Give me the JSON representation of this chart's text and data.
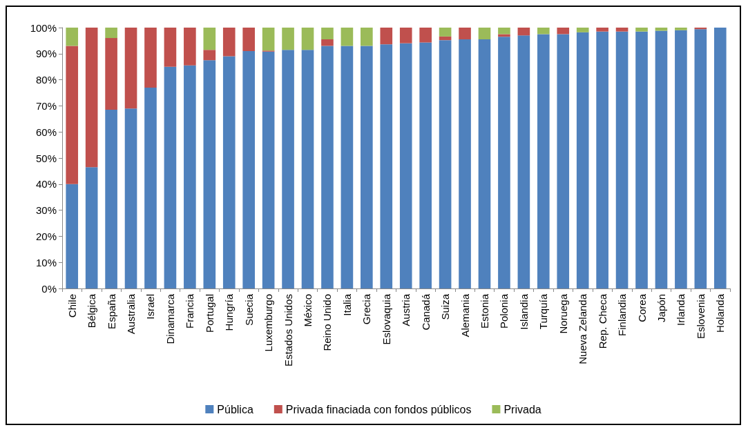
{
  "chart_data": {
    "type": "bar",
    "stacked": true,
    "categories": [
      "Chile",
      "Bélgica",
      "España",
      "Australia",
      "Israel",
      "Dinamarca",
      "Francia",
      "Portugal",
      "Hungría",
      "Suecia",
      "Luxemburgo",
      "Estados Unidos",
      "México",
      "Reino Unido",
      "Italia",
      "Grecia",
      "Eslovaquia",
      "Austria",
      "Canadá",
      "Suiza",
      "Alemania",
      "Estonia",
      "Polonia",
      "Islandia",
      "Turquía",
      "Noruega",
      "Nueva Zelanda",
      "Rep. Checa",
      "Finlandia",
      "Corea",
      "Japón",
      "Irlanda",
      "Eslovenia",
      "Holanda"
    ],
    "series": [
      {
        "name": "Pública",
        "color": "#4f81bd",
        "values": [
          40,
          46.5,
          68.5,
          69,
          77,
          85,
          85.5,
          87.5,
          89,
          91,
          90.8,
          91.5,
          91.5,
          93,
          93,
          93,
          93.6,
          94,
          94.3,
          95.2,
          95.5,
          95.5,
          96.5,
          97,
          97.5,
          97.5,
          98.2,
          98.5,
          98.5,
          98.5,
          98.8,
          99,
          99.4,
          100
        ]
      },
      {
        "name": "Privada finaciada con fondos públicos",
        "color": "#c0504d",
        "values": [
          53,
          53.5,
          27.5,
          31,
          23,
          15,
          14.5,
          4,
          11,
          9,
          0.4,
          0,
          0,
          2.5,
          0,
          0,
          6.4,
          6,
          5.7,
          1.4,
          4.5,
          0,
          1,
          3,
          0,
          2.5,
          0,
          1.5,
          1.5,
          0,
          0,
          0,
          0.6,
          0
        ]
      },
      {
        "name": "Privada",
        "color": "#9bbb59",
        "values": [
          7,
          0,
          4,
          0,
          0,
          0,
          0,
          8.5,
          0,
          0,
          8.8,
          8.5,
          8.5,
          4.5,
          7,
          7,
          0,
          0,
          0,
          3.4,
          0,
          4.5,
          2.5,
          0,
          2.5,
          0,
          1.8,
          0,
          0,
          1.5,
          1.2,
          1,
          0,
          0
        ]
      }
    ],
    "ylim": [
      0,
      100
    ],
    "yticks": [
      {
        "value": 0,
        "label": "0%"
      },
      {
        "value": 10,
        "label": "10%"
      },
      {
        "value": 20,
        "label": "20%"
      },
      {
        "value": 30,
        "label": "30%"
      },
      {
        "value": 40,
        "label": "40%"
      },
      {
        "value": 50,
        "label": "50%"
      },
      {
        "value": 60,
        "label": "60%"
      },
      {
        "value": 70,
        "label": "70%"
      },
      {
        "value": 80,
        "label": "80%"
      },
      {
        "value": 90,
        "label": "90%"
      },
      {
        "value": 100,
        "label": "100%"
      }
    ],
    "legend": "bottom"
  }
}
